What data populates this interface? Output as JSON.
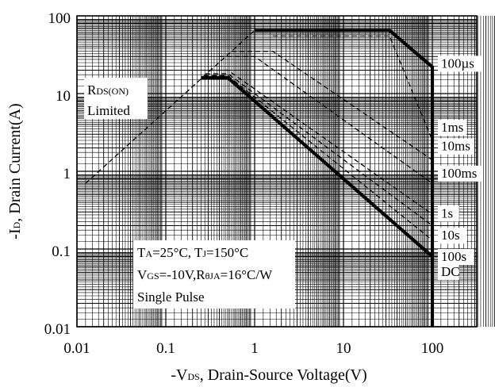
{
  "chart_data": {
    "type": "line",
    "xscale": "log",
    "yscale": "log",
    "xlim": [
      0.01,
      500
    ],
    "ylim": [
      0.01,
      100
    ],
    "grid": true,
    "xticks": [
      "0.01",
      "0.1",
      "1",
      "10",
      "100"
    ],
    "yticks": [
      "0.01",
      "0.1",
      "1",
      "10",
      "100"
    ],
    "xlabel": {
      "prefix": "-V",
      "sub": "DS",
      "rest": ", Drain-Source Voltage(V)"
    },
    "ylabel": {
      "prefix": "-I",
      "sub": "D",
      "rest": ", Drain Current(A)"
    },
    "rds_label": {
      "main": "R",
      "sub": "DS(ON)",
      "line2": "Limited"
    },
    "conditions": {
      "line1": {
        "a": "T",
        "a_sub": "A",
        "b": "=25°C, T",
        "b_sub": "J",
        "c": "=150°C"
      },
      "line2": {
        "a": "V",
        "a_sub": "GS",
        "b": "=-10V,R",
        "b_sub": "θJA",
        "c": "=16°C/W"
      },
      "line3": "Single Pulse"
    },
    "series": [
      {
        "name": "R<sub>DS(ON)</sub> Limited",
        "style": "dashed",
        "x": [
          0.0125,
          1.0
        ],
        "y": [
          0.7,
          65
        ]
      },
      {
        "name": "100µs",
        "style": "solid",
        "x": [
          1.0,
          33,
          100,
          100
        ],
        "y": [
          65,
          65,
          22,
          0.01
        ]
      },
      {
        "name": "1ms",
        "style": "dashed",
        "x": [
          1.6,
          33,
          100
        ],
        "y": [
          55,
          55,
          2.5
        ]
      },
      {
        "name": "10ms",
        "style": "dashed",
        "x": [
          0.55,
          1.6,
          100
        ],
        "y": [
          35,
          35,
          1.4
        ]
      },
      {
        "name": "100ms",
        "style": "dashed",
        "x": [
          0.4,
          1.0,
          100
        ],
        "y": [
          30,
          30,
          0.7
        ]
      },
      {
        "name": "1s",
        "style": "dashed",
        "x": [
          0.3,
          0.5,
          100
        ],
        "y": [
          20,
          20,
          0.28
        ]
      },
      {
        "name": "10s",
        "style": "dashed",
        "x": [
          0.28,
          0.5,
          100
        ],
        "y": [
          18,
          18,
          0.2
        ]
      },
      {
        "name": "100s",
        "style": "dashed",
        "x": [
          0.27,
          0.5,
          100
        ],
        "y": [
          17,
          17,
          0.13
        ]
      },
      {
        "name": "DC",
        "style": "solid",
        "x": [
          0.25,
          0.5,
          100
        ],
        "y": [
          16,
          16,
          0.08
        ]
      }
    ],
    "curve_labels": [
      {
        "text": "100µs",
        "y": 22
      },
      {
        "text": "1ms",
        "y": 3.3
      },
      {
        "text": "10ms",
        "y": 1.9
      },
      {
        "text": "100ms",
        "y": 0.85
      },
      {
        "text": "1s",
        "y": 0.26
      },
      {
        "text": "10s",
        "y": 0.135
      },
      {
        "text": "100s",
        "y": 0.072
      },
      {
        "text": "DC",
        "y": 0.046
      }
    ]
  }
}
